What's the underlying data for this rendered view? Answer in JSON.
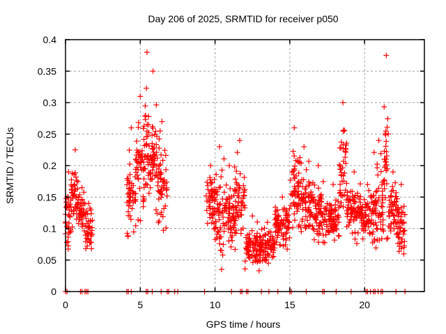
{
  "chart_data": {
    "type": "scatter",
    "title": "Day 206 of 2025, SRMTID for receiver p050",
    "xlabel": "GPS time / hours",
    "ylabel": "SRMTID / TECUs",
    "xlim": [
      0,
      24
    ],
    "ylim": [
      0,
      0.4
    ],
    "xticks": [
      0,
      5,
      10,
      15,
      20
    ],
    "xtick_labels": [
      "0",
      "5",
      "10",
      "15",
      "20"
    ],
    "yticks": [
      0,
      0.05,
      0.1,
      0.15,
      0.2,
      0.25,
      0.3,
      0.35,
      0.4
    ],
    "ytick_labels": [
      "0",
      "0.05",
      "0.1",
      "0.15",
      "0.2",
      "0.25",
      "0.3",
      "0.35",
      "0.4"
    ],
    "grid": true,
    "legend": "none",
    "marker": "+",
    "marker_color": "#ff0000",
    "series": [
      {
        "name": "SRMTID",
        "clusters": [
          {
            "x_range": [
              0.0,
              0.4
            ],
            "y_range": [
              0.05,
              0.19
            ],
            "peak": 0.19
          },
          {
            "x_range": [
              0.4,
              0.9
            ],
            "y_range": [
              0.08,
              0.22
            ],
            "peak": 0.225
          },
          {
            "x_range": [
              0.9,
              1.3
            ],
            "y_range": [
              0.08,
              0.165
            ],
            "peak": 0.165
          },
          {
            "x_range": [
              1.3,
              1.8
            ],
            "y_range": [
              0.05,
              0.14
            ],
            "peak": 0.14
          },
          {
            "x_range": [
              4.1,
              4.7
            ],
            "y_range": [
              0.06,
              0.25
            ],
            "peak": 0.26
          },
          {
            "x_range": [
              4.7,
              5.3
            ],
            "y_range": [
              0.1,
              0.3
            ],
            "peak": 0.31
          },
          {
            "x_range": [
              5.3,
              5.6
            ],
            "y_range": [
              0.1,
              0.35
            ],
            "peak": 0.38
          },
          {
            "x_range": [
              5.6,
              6.1
            ],
            "y_range": [
              0.12,
              0.31
            ],
            "peak": 0.35
          },
          {
            "x_range": [
              6.1,
              6.8
            ],
            "y_range": [
              0.08,
              0.27
            ],
            "peak": 0.27
          },
          {
            "x_range": [
              9.4,
              10.0
            ],
            "y_range": [
              0.08,
              0.2
            ],
            "peak": 0.2
          },
          {
            "x_range": [
              10.0,
              10.6
            ],
            "y_range": [
              0.03,
              0.23
            ],
            "peak": 0.23
          },
          {
            "x_range": [
              10.6,
              11.3
            ],
            "y_range": [
              0.05,
              0.19
            ],
            "peak": 0.2
          },
          {
            "x_range": [
              11.3,
              12.0
            ],
            "y_range": [
              0.05,
              0.24
            ],
            "peak": 0.24
          },
          {
            "x_range": [
              12.0,
              13.0
            ],
            "y_range": [
              0.02,
              0.12
            ],
            "peak": 0.12
          },
          {
            "x_range": [
              13.0,
              14.0
            ],
            "y_range": [
              0.03,
              0.11
            ],
            "peak": 0.11
          },
          {
            "x_range": [
              14.0,
              15.0
            ],
            "y_range": [
              0.06,
              0.15
            ],
            "peak": 0.15
          },
          {
            "x_range": [
              15.0,
              15.6
            ],
            "y_range": [
              0.07,
              0.25
            ],
            "peak": 0.26
          },
          {
            "x_range": [
              15.6,
              16.3
            ],
            "y_range": [
              0.05,
              0.23
            ],
            "peak": 0.23
          },
          {
            "x_range": [
              16.3,
              17.5
            ],
            "y_range": [
              0.06,
              0.19
            ],
            "peak": 0.2
          },
          {
            "x_range": [
              17.5,
              18.3
            ],
            "y_range": [
              0.07,
              0.16
            ],
            "peak": 0.17
          },
          {
            "x_range": [
              18.3,
              18.8
            ],
            "y_range": [
              0.1,
              0.28
            ],
            "peak": 0.3
          },
          {
            "x_range": [
              18.8,
              19.8
            ],
            "y_range": [
              0.07,
              0.19
            ],
            "peak": 0.19
          },
          {
            "x_range": [
              19.8,
              20.6
            ],
            "y_range": [
              0.07,
              0.17
            ],
            "peak": 0.17
          },
          {
            "x_range": [
              20.6,
              21.3
            ],
            "y_range": [
              0.05,
              0.23
            ],
            "peak": 0.24
          },
          {
            "x_range": [
              21.3,
              21.6
            ],
            "y_range": [
              0.06,
              0.36
            ],
            "peak": 0.375
          },
          {
            "x_range": [
              21.6,
              22.2
            ],
            "y_range": [
              0.07,
              0.19
            ],
            "peak": 0.19
          },
          {
            "x_range": [
              22.2,
              22.7
            ],
            "y_range": [
              0.04,
              0.16
            ],
            "peak": 0.17
          }
        ],
        "zero_value_times": [
          0.0,
          0.1,
          1.0,
          1.1,
          1.3,
          1.4,
          1.5,
          4.1,
          4.2,
          4.4,
          5.4,
          5.5,
          5.8,
          6.4,
          6.8,
          6.9,
          7.3,
          7.5,
          9.3,
          11.1,
          11.7,
          11.8,
          12.1,
          12.2,
          13.1,
          13.6,
          14.2,
          15.0,
          15.1,
          16.1,
          17.2,
          17.3,
          18.1,
          19.1,
          20.1,
          20.2,
          20.4,
          20.6,
          20.7,
          20.9,
          21.1,
          21.2,
          22.1,
          22.7
        ]
      }
    ]
  }
}
